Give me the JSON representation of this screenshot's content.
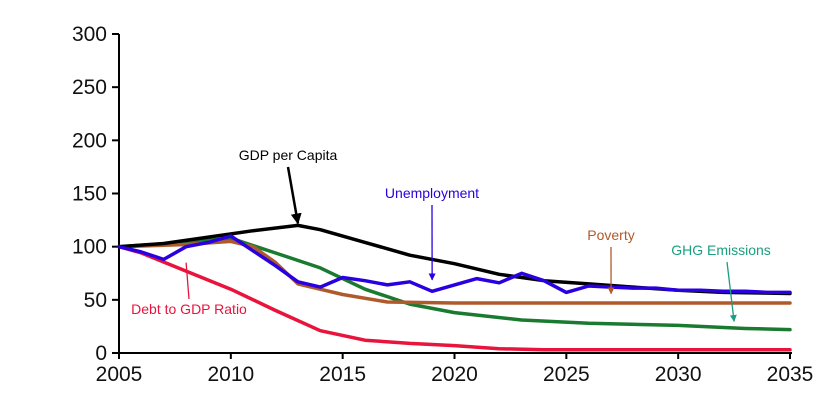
{
  "chart_data": {
    "type": "line",
    "title": "",
    "xlabel": "",
    "ylabel": "",
    "xlim": [
      2005,
      2035
    ],
    "ylim": [
      0,
      300
    ],
    "xticks": [
      2005,
      2010,
      2015,
      2020,
      2025,
      2030,
      2035
    ],
    "yticks": [
      0,
      50,
      100,
      150,
      200,
      250,
      300
    ],
    "grid": false,
    "legend": "inline annotations",
    "series": [
      {
        "name": "GDP per Capita",
        "color": "#000000",
        "points": [
          [
            2005,
            100
          ],
          [
            2007,
            103
          ],
          [
            2009,
            109
          ],
          [
            2011,
            115
          ],
          [
            2013,
            120
          ],
          [
            2014,
            116
          ],
          [
            2016,
            104
          ],
          [
            2018,
            92
          ],
          [
            2020,
            84
          ],
          [
            2022,
            74
          ],
          [
            2024,
            68
          ],
          [
            2026,
            65
          ],
          [
            2028,
            62
          ],
          [
            2030,
            59
          ],
          [
            2032,
            57
          ],
          [
            2035,
            56
          ]
        ]
      },
      {
        "name": "Unemployment",
        "color": "#2a00e0",
        "points": [
          [
            2005,
            100
          ],
          [
            2006,
            95
          ],
          [
            2007,
            88
          ],
          [
            2008,
            100
          ],
          [
            2009,
            104
          ],
          [
            2010,
            110
          ],
          [
            2011,
            96
          ],
          [
            2012,
            82
          ],
          [
            2013,
            67
          ],
          [
            2014,
            62
          ],
          [
            2015,
            71
          ],
          [
            2016,
            68
          ],
          [
            2017,
            64
          ],
          [
            2018,
            67
          ],
          [
            2019,
            58
          ],
          [
            2020,
            64
          ],
          [
            2021,
            70
          ],
          [
            2022,
            66
          ],
          [
            2023,
            75
          ],
          [
            2024,
            68
          ],
          [
            2025,
            57
          ],
          [
            2026,
            63
          ],
          [
            2027,
            62
          ],
          [
            2028,
            61
          ],
          [
            2029,
            61
          ],
          [
            2030,
            59
          ],
          [
            2031,
            59
          ],
          [
            2032,
            58
          ],
          [
            2033,
            58
          ],
          [
            2034,
            57
          ],
          [
            2035,
            57
          ]
        ]
      },
      {
        "name": "Poverty",
        "color": "#b05a2c",
        "points": [
          [
            2005,
            100
          ],
          [
            2008,
            102
          ],
          [
            2010,
            105
          ],
          [
            2011,
            100
          ],
          [
            2012,
            85
          ],
          [
            2013,
            65
          ],
          [
            2015,
            55
          ],
          [
            2017,
            48
          ],
          [
            2020,
            47
          ],
          [
            2025,
            47
          ],
          [
            2030,
            47
          ],
          [
            2035,
            47
          ]
        ]
      },
      {
        "name": "GHG Emissions",
        "color": "#1a7a30",
        "points": [
          [
            2005,
            100
          ],
          [
            2008,
            104
          ],
          [
            2010,
            108
          ],
          [
            2012,
            94
          ],
          [
            2014,
            80
          ],
          [
            2016,
            60
          ],
          [
            2018,
            46
          ],
          [
            2020,
            38
          ],
          [
            2023,
            31
          ],
          [
            2026,
            28
          ],
          [
            2030,
            26
          ],
          [
            2033,
            23
          ],
          [
            2035,
            22
          ]
        ]
      },
      {
        "name": "Debt to GDP Ratio",
        "color": "#e8143c",
        "points": [
          [
            2005,
            100
          ],
          [
            2006,
            94
          ],
          [
            2008,
            77
          ],
          [
            2010,
            60
          ],
          [
            2012,
            40
          ],
          [
            2014,
            21
          ],
          [
            2016,
            12
          ],
          [
            2018,
            9
          ],
          [
            2020,
            7
          ],
          [
            2022,
            4
          ],
          [
            2024,
            3
          ],
          [
            2030,
            3
          ],
          [
            2035,
            3
          ]
        ]
      }
    ],
    "annotations": [
      {
        "text": "GDP per Capita",
        "color": "#000000",
        "arrow_to": [
          2013,
          120
        ]
      },
      {
        "text": "Unemployment",
        "color": "#2a00e0",
        "arrow_to": [
          2019,
          66
        ]
      },
      {
        "text": "Poverty",
        "color": "#b05a2c",
        "arrow_to": [
          2027,
          53
        ]
      },
      {
        "text": "GHG Emissions",
        "color": "#1a9e80",
        "arrow_to": [
          2032.5,
          27
        ]
      },
      {
        "text": "Debt to GDP Ratio",
        "color": "#e8143c",
        "arrow_to": [
          2008,
          85
        ]
      }
    ]
  }
}
